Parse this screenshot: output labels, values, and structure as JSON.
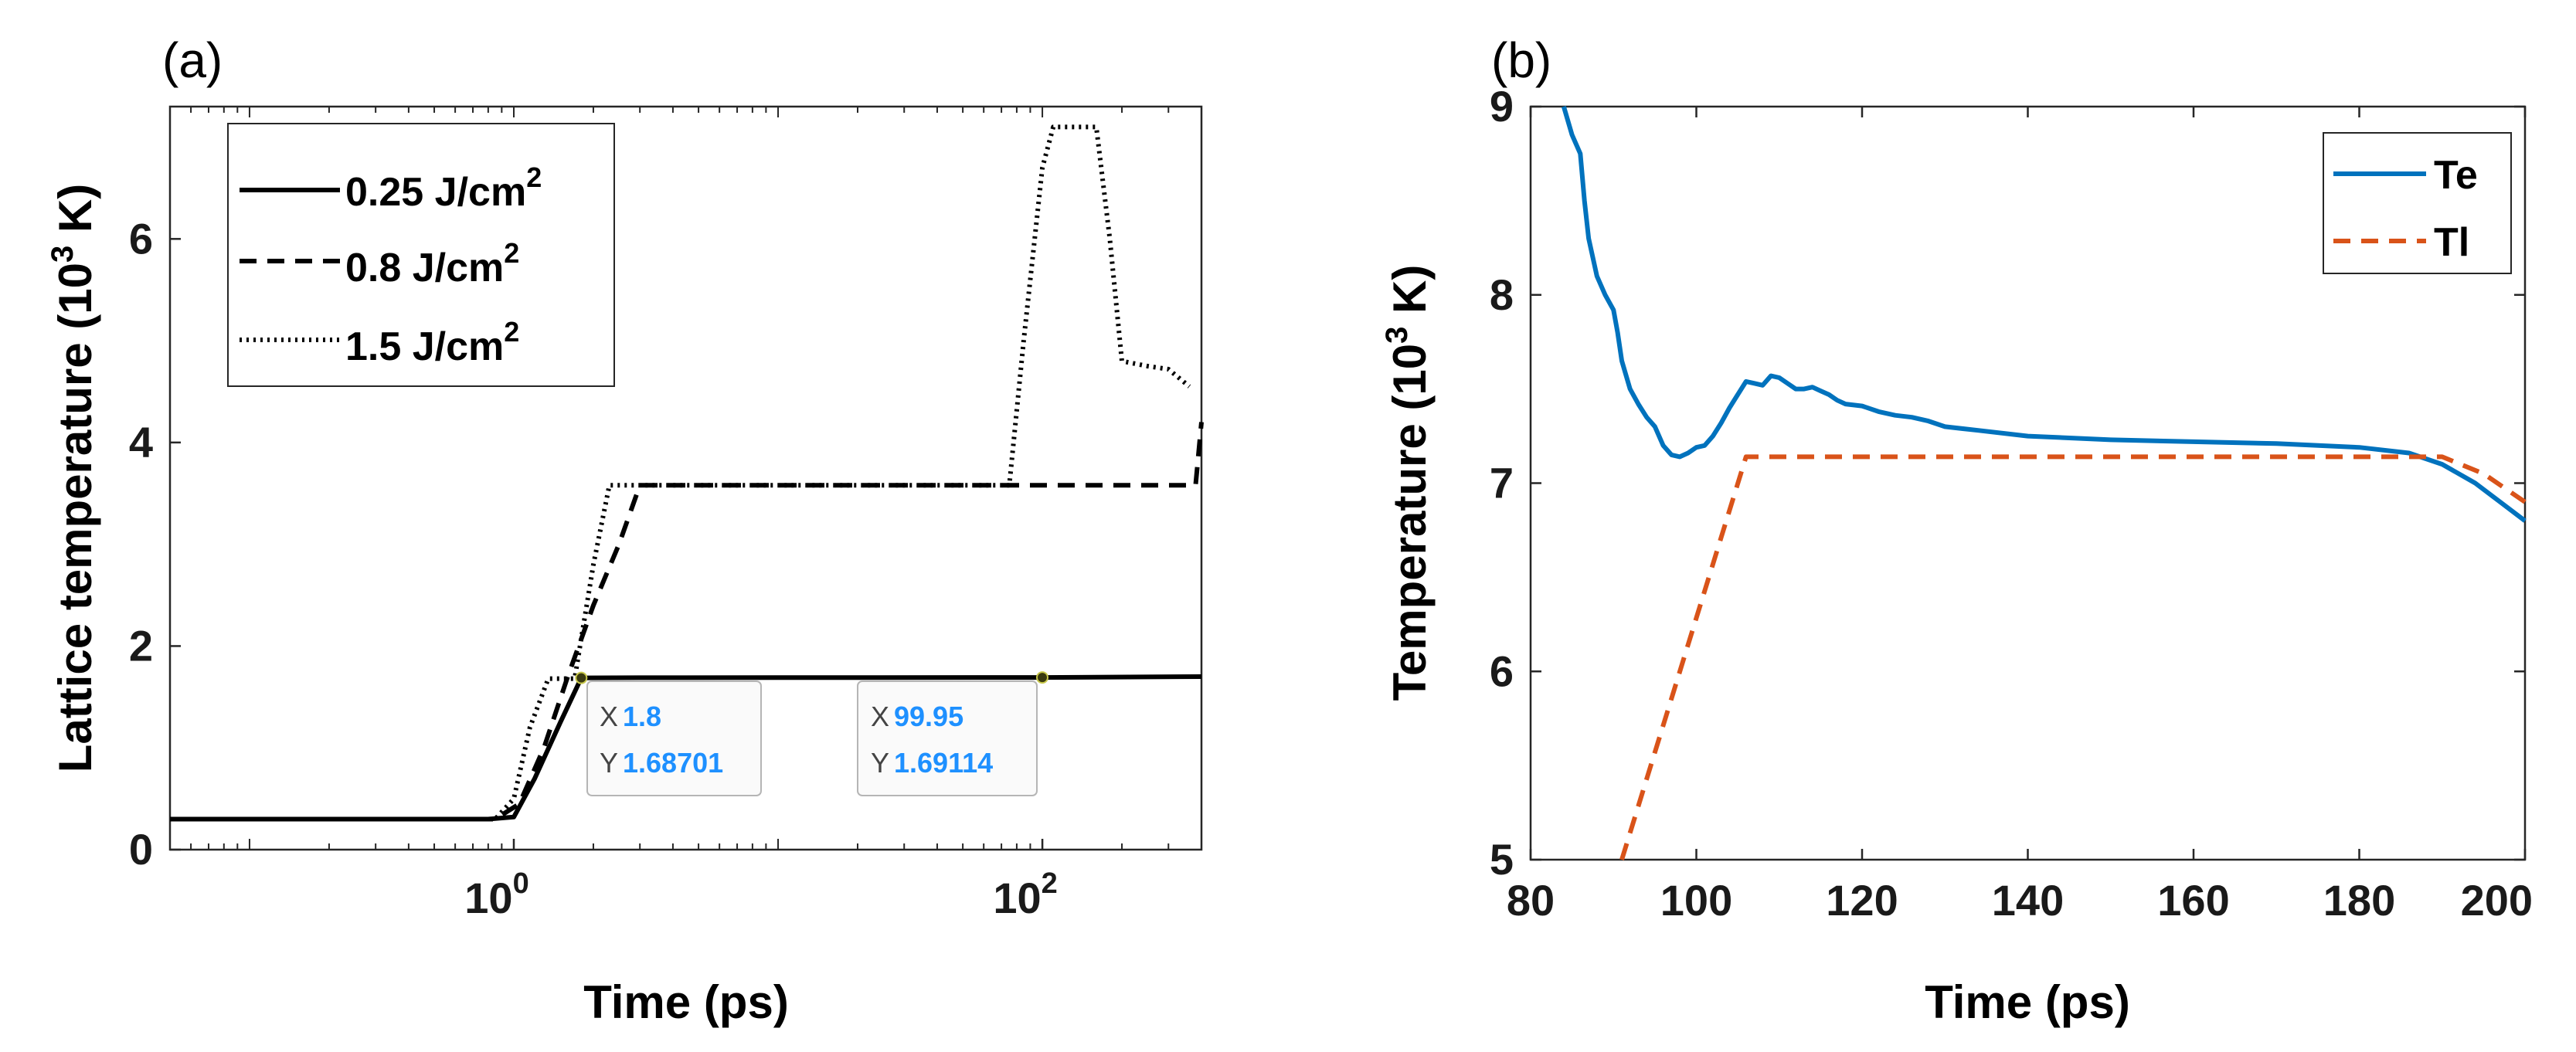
{
  "chart_data": [
    {
      "panel_label": "(a)",
      "type": "line",
      "x_scale": "log",
      "xlabel": "Time (ps)",
      "ylabel_main": "Lattice temperature (10",
      "ylabel_sup": "3",
      "ylabel_end": " K)",
      "xlim": [
        0.05,
        400
      ],
      "ylim": [
        0,
        7.3
      ],
      "x_ticks": [
        {
          "value": 1,
          "base": "10",
          "exp": "0"
        },
        {
          "value": 100,
          "base": "10",
          "exp": "2"
        }
      ],
      "y_ticks": [
        {
          "value": 0,
          "label": "0"
        },
        {
          "value": 2,
          "label": "2"
        },
        {
          "value": 4,
          "label": "4"
        },
        {
          "value": 6,
          "label": "6"
        }
      ],
      "legend": {
        "placement": "top-left",
        "entries": [
          {
            "text": "0.25 J/cm",
            "sup": "2"
          },
          {
            "text": "0.8 J/cm",
            "sup": "2"
          },
          {
            "text": "1.5 J/cm",
            "sup": "2"
          }
        ]
      },
      "series": [
        {
          "name": "0.25 J/cm2",
          "style": "solid",
          "points": [
            [
              0.05,
              0.3
            ],
            [
              0.8,
              0.3
            ],
            [
              1.0,
              0.32
            ],
            [
              1.2,
              0.7
            ],
            [
              1.5,
              1.25
            ],
            [
              1.8,
              1.687
            ],
            [
              3,
              1.689
            ],
            [
              10,
              1.69
            ],
            [
              99.95,
              1.69114
            ],
            [
              400,
              1.7
            ]
          ]
        },
        {
          "name": "0.8 J/cm2",
          "style": "dashed",
          "points": [
            [
              0.05,
              0.3
            ],
            [
              0.85,
              0.3
            ],
            [
              1.05,
              0.45
            ],
            [
              1.3,
              1.0
            ],
            [
              1.6,
              1.7
            ],
            [
              2.0,
              2.4
            ],
            [
              2.5,
              3.0
            ],
            [
              3.0,
              3.58
            ],
            [
              10,
              3.58
            ],
            [
              100,
              3.58
            ],
            [
              380,
              3.58
            ],
            [
              400,
              4.2
            ]
          ]
        },
        {
          "name": "1.5 J/cm2",
          "style": "dotted",
          "points": [
            [
              0.05,
              0.3
            ],
            [
              0.85,
              0.3
            ],
            [
              1.0,
              0.5
            ],
            [
              1.15,
              1.2
            ],
            [
              1.35,
              1.68
            ],
            [
              1.7,
              1.68
            ],
            [
              2.0,
              2.8
            ],
            [
              2.3,
              3.58
            ],
            [
              10,
              3.58
            ],
            [
              75,
              3.58
            ],
            [
              85,
              5.0
            ],
            [
              100,
              6.7
            ],
            [
              110,
              7.1
            ],
            [
              160,
              7.1
            ],
            [
              180,
              6.0
            ],
            [
              200,
              4.8
            ],
            [
              250,
              4.75
            ],
            [
              300,
              4.72
            ],
            [
              360,
              4.55
            ]
          ]
        }
      ],
      "datatips": [
        {
          "x_label": "X",
          "x_value": "1.8",
          "y_label": "Y",
          "y_value": "1.68701",
          "x": 1.8,
          "y": 1.68701
        },
        {
          "x_label": "X",
          "x_value": "99.95",
          "y_label": "Y",
          "y_value": "1.69114",
          "x": 99.95,
          "y": 1.69114
        }
      ]
    },
    {
      "panel_label": "(b)",
      "type": "line",
      "x_scale": "linear",
      "xlabel": "Time (ps)",
      "ylabel_main": "Temperature (10",
      "ylabel_sup": "3",
      "ylabel_end": " K)",
      "xlim": [
        80,
        200
      ],
      "ylim": [
        5,
        9
      ],
      "x_ticks": [
        {
          "value": 80,
          "label": "80"
        },
        {
          "value": 100,
          "label": "100"
        },
        {
          "value": 120,
          "label": "120"
        },
        {
          "value": 140,
          "label": "140"
        },
        {
          "value": 160,
          "label": "160"
        },
        {
          "value": 180,
          "label": "180"
        },
        {
          "value": 200,
          "label": "200"
        }
      ],
      "y_ticks": [
        {
          "value": 5,
          "label": "5"
        },
        {
          "value": 6,
          "label": "6"
        },
        {
          "value": 7,
          "label": "7"
        },
        {
          "value": 8,
          "label": "8"
        },
        {
          "value": 9,
          "label": "9"
        }
      ],
      "legend": {
        "placement": "top-right",
        "entries": [
          {
            "text": "Te",
            "sup": ""
          },
          {
            "text": "Tl",
            "sup": ""
          }
        ]
      },
      "series": [
        {
          "name": "Te",
          "style": "solid",
          "color": "#0072bd",
          "points": [
            [
              84,
              9.0
            ],
            [
              85,
              8.85
            ],
            [
              86,
              8.75
            ],
            [
              86.5,
              8.5
            ],
            [
              87,
              8.3
            ],
            [
              88,
              8.1
            ],
            [
              89,
              8.0
            ],
            [
              90,
              7.92
            ],
            [
              90.5,
              7.8
            ],
            [
              91,
              7.65
            ],
            [
              92,
              7.5
            ],
            [
              93,
              7.42
            ],
            [
              94,
              7.35
            ],
            [
              95,
              7.3
            ],
            [
              96,
              7.2
            ],
            [
              97,
              7.15
            ],
            [
              98,
              7.14
            ],
            [
              99,
              7.16
            ],
            [
              100,
              7.19
            ],
            [
              101,
              7.2
            ],
            [
              102,
              7.25
            ],
            [
              103,
              7.32
            ],
            [
              104,
              7.4
            ],
            [
              105,
              7.47
            ],
            [
              106,
              7.54
            ],
            [
              107,
              7.53
            ],
            [
              108,
              7.52
            ],
            [
              109,
              7.57
            ],
            [
              110,
              7.56
            ],
            [
              111,
              7.53
            ],
            [
              112,
              7.5
            ],
            [
              113,
              7.5
            ],
            [
              114,
              7.51
            ],
            [
              115,
              7.49
            ],
            [
              116,
              7.47
            ],
            [
              117,
              7.44
            ],
            [
              118,
              7.42
            ],
            [
              120,
              7.41
            ],
            [
              122,
              7.38
            ],
            [
              124,
              7.36
            ],
            [
              126,
              7.35
            ],
            [
              128,
              7.33
            ],
            [
              130,
              7.3
            ],
            [
              134,
              7.28
            ],
            [
              140,
              7.25
            ],
            [
              150,
              7.23
            ],
            [
              160,
              7.22
            ],
            [
              170,
              7.21
            ],
            [
              180,
              7.19
            ],
            [
              186,
              7.16
            ],
            [
              190,
              7.1
            ],
            [
              194,
              7.0
            ],
            [
              197,
              6.9
            ],
            [
              200,
              6.8
            ]
          ]
        },
        {
          "name": "Tl",
          "style": "dashed",
          "color": "#d95319",
          "points": [
            [
              91,
              5.0
            ],
            [
              106,
              7.14
            ],
            [
              190,
              7.14
            ],
            [
              195,
              7.05
            ],
            [
              200,
              6.9
            ]
          ]
        }
      ]
    }
  ]
}
